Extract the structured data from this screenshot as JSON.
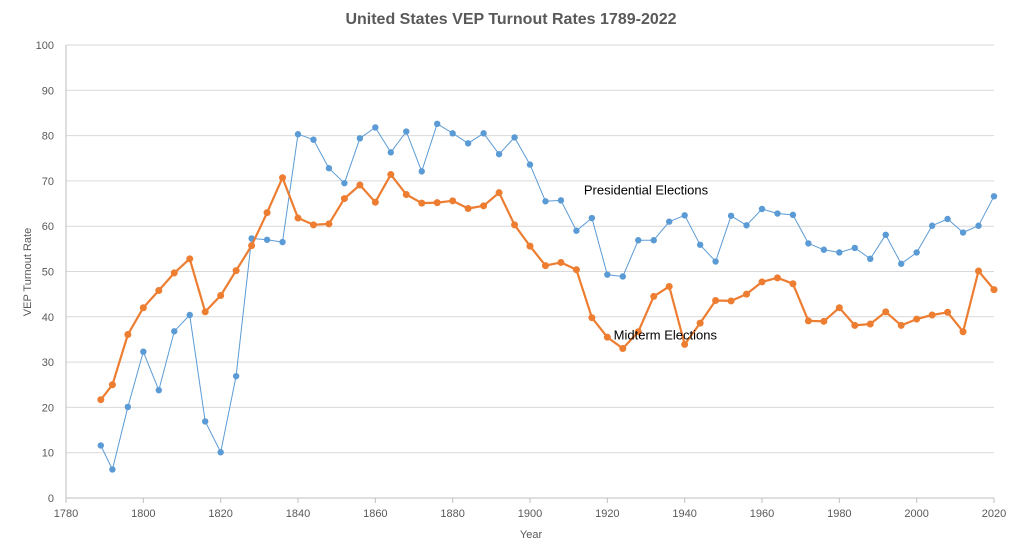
{
  "chart_data": {
    "type": "line",
    "title": "United States VEP Turnout Rates 1789-2022",
    "xlabel": "Year",
    "ylabel": "VEP Turnout Rate",
    "xlim": [
      1780,
      2020
    ],
    "ylim": [
      0,
      100
    ],
    "xticks": [
      1780,
      1800,
      1820,
      1840,
      1860,
      1880,
      1900,
      1920,
      1940,
      1960,
      1980,
      2000,
      2020
    ],
    "yticks": [
      0,
      10,
      20,
      30,
      40,
      50,
      60,
      70,
      80,
      90,
      100
    ],
    "grid": "horizontal",
    "legend": "none",
    "annotations": [
      {
        "text": "Presidential Elections",
        "x": 1930,
        "y": 67
      },
      {
        "text": "Midterm Elections",
        "x": 1935,
        "y": 35
      }
    ],
    "series": [
      {
        "name": "Presidential Elections",
        "color": "#5B9BD5",
        "x": [
          1789,
          1792,
          1796,
          1800,
          1804,
          1808,
          1812,
          1816,
          1820,
          1824,
          1828,
          1832,
          1836,
          1840,
          1844,
          1848,
          1852,
          1856,
          1860,
          1864,
          1868,
          1872,
          1876,
          1880,
          1884,
          1888,
          1892,
          1896,
          1900,
          1904,
          1908,
          1912,
          1916,
          1920,
          1924,
          1928,
          1932,
          1936,
          1940,
          1944,
          1948,
          1952,
          1956,
          1960,
          1964,
          1968,
          1972,
          1976,
          1980,
          1984,
          1988,
          1992,
          1996,
          2000,
          2004,
          2008,
          2012,
          2016,
          2020
        ],
        "y": [
          11.6,
          6.3,
          20.1,
          32.3,
          23.8,
          36.8,
          40.4,
          16.9,
          10.1,
          26.9,
          57.3,
          57.0,
          56.5,
          80.3,
          79.1,
          72.8,
          69.5,
          79.4,
          81.8,
          76.3,
          80.9,
          72.1,
          82.6,
          80.5,
          78.3,
          80.5,
          75.9,
          79.6,
          73.6,
          65.5,
          65.7,
          59.0,
          61.8,
          49.3,
          48.9,
          56.9,
          56.9,
          61.0,
          62.4,
          55.9,
          52.2,
          62.3,
          60.2,
          63.8,
          62.8,
          62.5,
          56.2,
          54.8,
          54.2,
          55.2,
          52.8,
          58.1,
          51.7,
          54.2,
          60.1,
          61.6,
          58.6,
          60.1,
          66.6
        ]
      },
      {
        "name": "Midterm Elections",
        "color": "#ED7D31",
        "x": [
          1789,
          1792,
          1796,
          1800,
          1804,
          1808,
          1812,
          1816,
          1820,
          1824,
          1828,
          1832,
          1836,
          1840,
          1844,
          1848,
          1852,
          1856,
          1860,
          1864,
          1868,
          1872,
          1876,
          1880,
          1884,
          1888,
          1892,
          1896,
          1900,
          1904,
          1908,
          1912,
          1916,
          1920,
          1924,
          1928,
          1932,
          1936,
          1940,
          1944,
          1948,
          1952,
          1956,
          1960,
          1964,
          1968,
          1972,
          1976,
          1980,
          1984,
          1988,
          1992,
          1996,
          2000,
          2004,
          2008,
          2012,
          2016,
          2020
        ],
        "y": [
          21.7,
          25.0,
          36.1,
          42.0,
          45.8,
          49.7,
          52.8,
          41.1,
          44.7,
          50.2,
          55.7,
          63.0,
          70.7,
          61.8,
          60.3,
          60.5,
          66.1,
          69.1,
          65.3,
          71.4,
          67.0,
          65.1,
          65.2,
          65.6,
          63.9,
          64.5,
          67.4,
          60.3,
          55.6,
          51.3,
          52.0,
          50.4,
          39.8,
          35.5,
          33.0,
          36.7,
          44.5,
          46.7,
          33.9,
          38.6,
          43.6,
          43.5,
          45.0,
          47.7,
          48.6,
          47.3,
          39.1,
          39.0,
          42.0,
          38.1,
          38.4,
          41.1,
          38.1,
          39.5,
          40.4,
          41.0,
          36.7,
          50.1,
          46.0
        ]
      }
    ]
  }
}
